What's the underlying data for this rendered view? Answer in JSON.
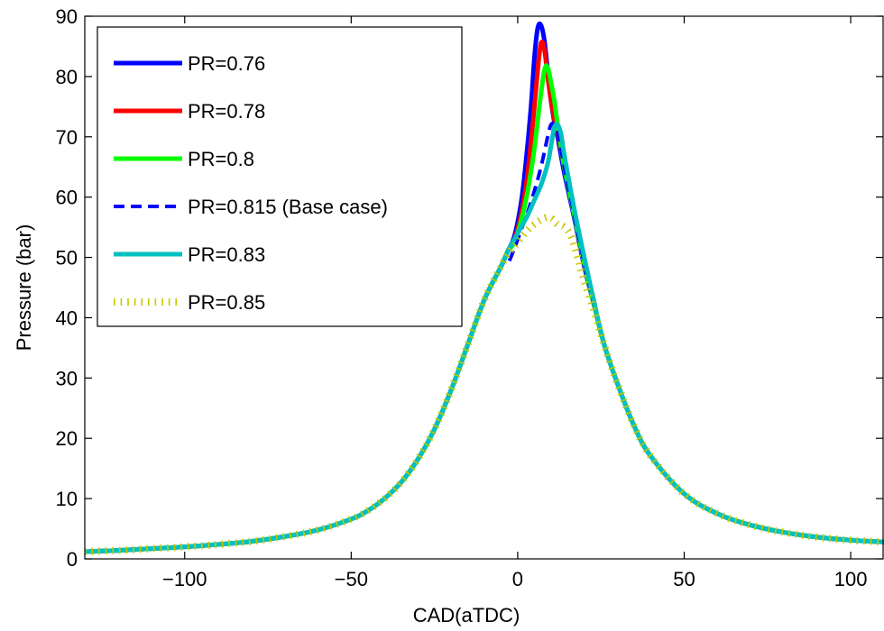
{
  "chart_data": {
    "type": "line",
    "xlabel": "CAD(aTDC)",
    "ylabel": "Pressure (bar)",
    "xlim": [
      -130,
      110
    ],
    "ylim": [
      0,
      90
    ],
    "xticks": [
      -100,
      -50,
      0,
      50,
      100
    ],
    "yticks": [
      0,
      10,
      20,
      30,
      40,
      50,
      60,
      70,
      80,
      90
    ],
    "xtick_labels": [
      "−100",
      "−50",
      "0",
      "50",
      "100"
    ],
    "ytick_labels": [
      "0",
      "10",
      "20",
      "30",
      "40",
      "50",
      "60",
      "70",
      "80",
      "90"
    ],
    "grid": false,
    "legend_position": "top-left",
    "base_curve": {
      "x": [
        -130,
        -120,
        -110,
        -100,
        -90,
        -80,
        -70,
        -60,
        -50,
        -45,
        -40,
        -35,
        -30,
        -25,
        -20,
        -15,
        -10,
        -5,
        -3,
        0,
        5,
        10,
        15,
        20,
        25,
        30,
        35,
        40,
        50,
        60,
        70,
        80,
        90,
        100,
        110
      ],
      "y": [
        1.2,
        1.4,
        1.7,
        2.0,
        2.4,
        2.9,
        3.7,
        4.8,
        6.6,
        8.0,
        10.0,
        12.7,
        16.5,
        21.5,
        28.0,
        35.5,
        43.0,
        48.5,
        50.5,
        52.5,
        55.2,
        56.0,
        53.5,
        47.0,
        37.5,
        29.0,
        22.0,
        17.0,
        10.8,
        7.5,
        5.6,
        4.4,
        3.6,
        3.1,
        2.8
      ]
    },
    "series": [
      {
        "name": "PR=0.76",
        "color": "#0000ff",
        "style": "solid",
        "x": [
          -3,
          -1,
          1,
          2.5,
          4,
          5,
          6,
          7,
          8,
          9,
          10,
          11,
          12,
          14,
          17,
          20,
          23,
          26
        ],
        "y": [
          51,
          53.5,
          59,
          66,
          75,
          83,
          88,
          88.5,
          86,
          81,
          76,
          72.5,
          70,
          64,
          56.5,
          48.5,
          42,
          35.5
        ]
      },
      {
        "name": "PR=0.78",
        "color": "#ff0000",
        "style": "solid",
        "x": [
          -3,
          -1,
          1,
          3,
          4.5,
          6,
          7,
          8,
          9,
          10,
          11,
          12,
          14,
          17,
          20,
          23,
          26
        ],
        "y": [
          51,
          53,
          57,
          64,
          72,
          81,
          85.5,
          84.5,
          80,
          76,
          73,
          71,
          65,
          57,
          49,
          42,
          35.5
        ]
      },
      {
        "name": "PR=0.8",
        "color": "#00ff00",
        "style": "solid",
        "x": [
          -3,
          -1,
          1,
          3,
          5,
          6.5,
          8,
          9,
          10,
          11,
          12,
          14,
          17,
          20,
          23,
          26
        ],
        "y": [
          51,
          52.5,
          56,
          61,
          68,
          75,
          81,
          81.5,
          79,
          76,
          72,
          65,
          57,
          49,
          42,
          35.5
        ]
      },
      {
        "name": "PR=0.815 (Base case)",
        "color": "#0000ff",
        "style": "dashed",
        "x": [
          -3,
          -1,
          1,
          3,
          5,
          7,
          9,
          10,
          11,
          12,
          14,
          17,
          20,
          23,
          26
        ],
        "y": [
          49,
          51.5,
          54.5,
          57.5,
          61,
          65,
          70,
          72,
          72,
          71,
          65,
          57,
          49,
          42,
          35.5
        ]
      },
      {
        "name": "PR=0.83",
        "color": "#00c0c0",
        "style": "solid",
        "x": [
          -3,
          -1,
          1,
          3,
          5,
          7,
          9,
          10,
          11,
          12,
          13,
          14,
          17,
          20,
          23,
          26
        ],
        "y": [
          51,
          53,
          55,
          57,
          59.5,
          62,
          65.5,
          68.5,
          71.5,
          72,
          70.5,
          67,
          58,
          50,
          42.5,
          35.5
        ]
      },
      {
        "name": "PR=0.85",
        "color": "#c8c800",
        "style": "dotted",
        "x": [
          -3,
          0,
          3,
          5,
          8,
          10,
          12,
          14,
          16,
          18,
          20,
          23,
          26
        ],
        "y": [
          50.5,
          52.5,
          54.5,
          55.5,
          56.5,
          56.5,
          55.5,
          55,
          53.5,
          50,
          46,
          41,
          35.5
        ]
      }
    ]
  }
}
